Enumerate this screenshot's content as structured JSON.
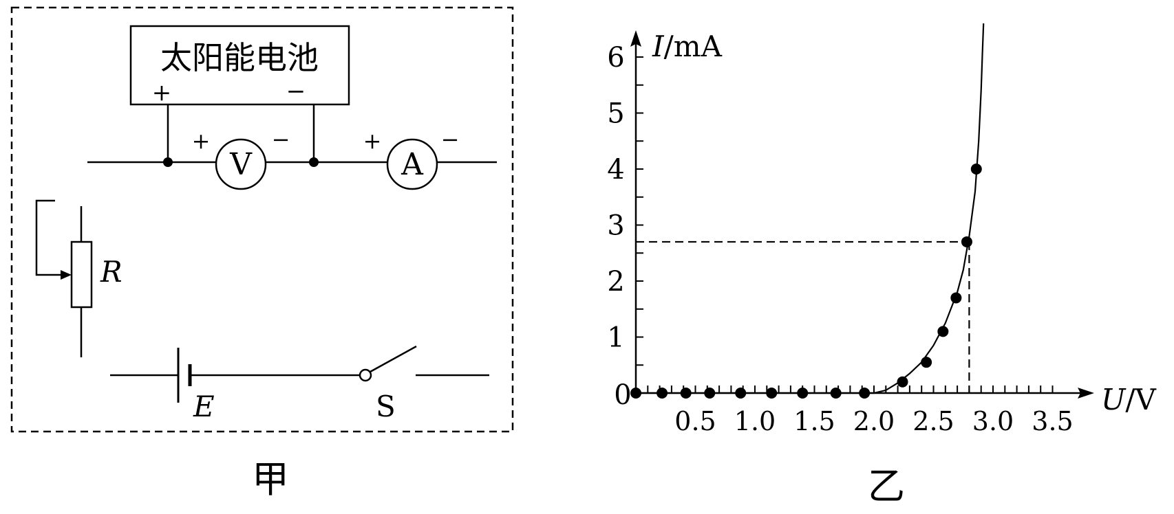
{
  "figure_a": {
    "caption": "甲",
    "panel_label": "太阳能电池",
    "panel_plus": "+",
    "panel_minus": "−",
    "voltmeter": {
      "symbol": "V",
      "plus": "+",
      "minus": "−"
    },
    "ammeter": {
      "symbol": "A",
      "plus": "+",
      "minus": "−"
    },
    "rheostat_label": "R",
    "battery_label": "E",
    "switch_label": "S"
  },
  "figure_b": {
    "caption": "乙",
    "y_axis_label_italic": "I",
    "y_axis_label_unit": "/mA",
    "x_axis_label_italic": "U",
    "x_axis_label_unit": "/V",
    "origin_label": "0"
  },
  "chart_data": {
    "type": "scatter",
    "title": "",
    "xlabel": "U/V",
    "ylabel": "I/mA",
    "xlim": [
      0,
      3.5
    ],
    "ylim": [
      0,
      6
    ],
    "x_ticks": [
      "0.5",
      "1.0",
      "1.5",
      "2.0",
      "2.5",
      "3.0",
      "3.5"
    ],
    "y_ticks": [
      "1",
      "2",
      "3",
      "4",
      "5",
      "6"
    ],
    "series": [
      {
        "points": [
          [
            0.0,
            0.0
          ],
          [
            0.22,
            0.0
          ],
          [
            0.42,
            0.0
          ],
          [
            0.62,
            0.0
          ],
          [
            0.88,
            0.0
          ],
          [
            1.14,
            0.0
          ],
          [
            1.4,
            0.0
          ],
          [
            1.68,
            0.0
          ],
          [
            1.92,
            0.0
          ],
          [
            2.24,
            0.2
          ],
          [
            2.44,
            0.55
          ],
          [
            2.58,
            1.1
          ],
          [
            2.69,
            1.7
          ],
          [
            2.78,
            2.7
          ],
          [
            2.86,
            4.0
          ]
        ]
      }
    ],
    "fitted_curve": [
      [
        0.0,
        0.0
      ],
      [
        1.0,
        0.0
      ],
      [
        2.0,
        0.0
      ],
      [
        2.1,
        0.05
      ],
      [
        2.2,
        0.18
      ],
      [
        2.3,
        0.35
      ],
      [
        2.4,
        0.55
      ],
      [
        2.5,
        0.85
      ],
      [
        2.6,
        1.25
      ],
      [
        2.7,
        1.8
      ],
      [
        2.75,
        2.2
      ],
      [
        2.8,
        2.8
      ],
      [
        2.85,
        3.6
      ],
      [
        2.88,
        4.5
      ],
      [
        2.9,
        5.4
      ],
      [
        2.91,
        6.0
      ],
      [
        2.92,
        6.6
      ]
    ],
    "reference_point": {
      "x": 2.8,
      "y": 2.7
    },
    "grid": false
  }
}
